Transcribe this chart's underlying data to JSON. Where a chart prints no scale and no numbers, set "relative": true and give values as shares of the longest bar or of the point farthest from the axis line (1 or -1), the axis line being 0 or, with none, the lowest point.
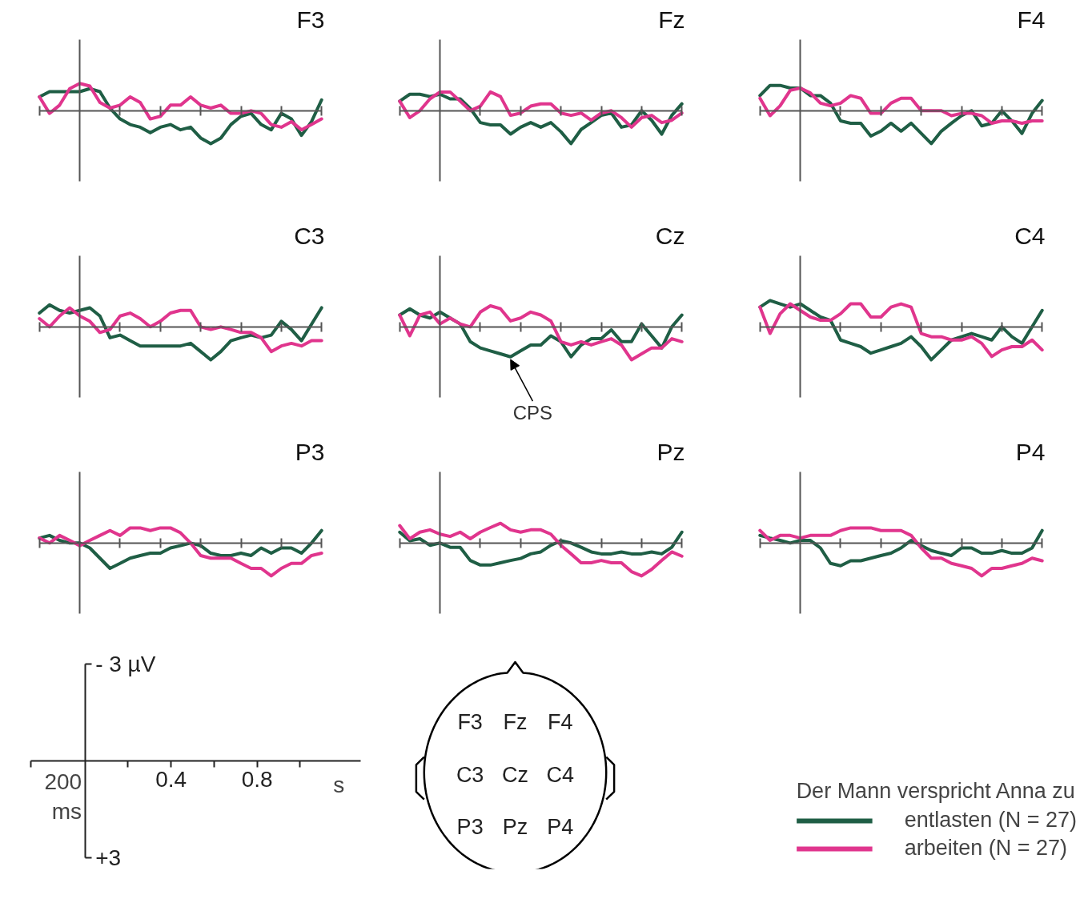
{
  "chart_data": [
    {
      "type": "line",
      "title": "F3",
      "relative": true,
      "legend": "bottom right",
      "legend_title": "Der Mann verspricht Anna zu",
      "categories": [
        null,
        null,
        null,
        null,
        null,
        null,
        null,
        null,
        null,
        null,
        null,
        null,
        null,
        null,
        null,
        null,
        null,
        null,
        null,
        null,
        null,
        null,
        null,
        null,
        null,
        null,
        null,
        null,
        null
      ],
      "series": [
        {
          "name": "entlasten (N = 27)",
          "color": "#1f5e45",
          "values": [
            0.42,
            0.58,
            0.58,
            0.58,
            0.58,
            0.67,
            0.58,
            0.08,
            -0.25,
            -0.42,
            -0.5,
            -0.67,
            -0.5,
            -0.42,
            -0.58,
            -0.5,
            -0.83,
            -1,
            -0.83,
            -0.42,
            -0.17,
            -0.08,
            -0.42,
            -0.58,
            -0.08,
            -0.25,
            -0.75,
            -0.33,
            0.33
          ]
        },
        {
          "name": "arbeiten (N = 27)",
          "color": "#e0358d",
          "values": [
            0.42,
            -0.08,
            0.17,
            0.67,
            0.83,
            0.75,
            0.25,
            0.08,
            0.17,
            0.42,
            0.25,
            -0.25,
            -0.17,
            0.17,
            0.17,
            0.42,
            0.17,
            0.08,
            0.17,
            -0.08,
            -0.08,
            0,
            -0.08,
            -0.42,
            -0.5,
            -0.33,
            -0.58,
            -0.42,
            -0.25
          ]
        }
      ]
    },
    {
      "type": "line",
      "title": "Fz",
      "relative": true,
      "categories": [
        null,
        null,
        null,
        null,
        null,
        null,
        null,
        null,
        null,
        null,
        null,
        null,
        null,
        null,
        null,
        null,
        null,
        null,
        null,
        null,
        null,
        null,
        null,
        null,
        null,
        null,
        null,
        null,
        null
      ],
      "series": [
        {
          "color": "#1f5e45",
          "values": [
            0.29,
            0.5,
            0.5,
            0.43,
            0.5,
            0.36,
            0.36,
            0.07,
            -0.36,
            -0.43,
            -0.43,
            -0.71,
            -0.5,
            -0.36,
            -0.5,
            -0.36,
            -0.64,
            -1,
            -0.57,
            -0.36,
            -0.14,
            -0.07,
            -0.5,
            -0.43,
            0,
            -0.29,
            -0.71,
            -0.14,
            0.21
          ]
        },
        {
          "color": "#e0358d",
          "values": [
            0.29,
            -0.21,
            0,
            0.36,
            0.57,
            0.57,
            0.29,
            0,
            0.14,
            0.57,
            0.43,
            -0.14,
            -0.07,
            0.14,
            0.21,
            0.21,
            -0.07,
            -0.14,
            -0.07,
            -0.29,
            -0.07,
            0,
            -0.21,
            -0.5,
            -0.21,
            -0.14,
            -0.36,
            -0.29,
            -0.07
          ]
        }
      ]
    },
    {
      "type": "line",
      "title": "F4",
      "relative": true,
      "categories": [
        null,
        null,
        null,
        null,
        null,
        null,
        null,
        null,
        null,
        null,
        null,
        null,
        null,
        null,
        null,
        null,
        null,
        null,
        null,
        null,
        null,
        null,
        null,
        null,
        null,
        null,
        null,
        null,
        null
      ],
      "series": [
        {
          "color": "#1f5e45",
          "values": [
            0.46,
            0.77,
            0.77,
            0.69,
            0.69,
            0.46,
            0.46,
            0.23,
            -0.31,
            -0.38,
            -0.38,
            -0.77,
            -0.62,
            -0.38,
            -0.62,
            -0.38,
            -0.69,
            -1,
            -0.62,
            -0.38,
            -0.15,
            0,
            -0.46,
            -0.38,
            0,
            -0.31,
            -0.69,
            -0.08,
            0.31
          ]
        },
        {
          "color": "#e0358d",
          "values": [
            0.38,
            -0.15,
            0.15,
            0.62,
            0.69,
            0.54,
            0.23,
            0.15,
            0.23,
            0.46,
            0.38,
            -0.08,
            -0.08,
            0.23,
            0.38,
            0.38,
            0,
            0,
            0,
            -0.15,
            -0.08,
            -0.08,
            -0.15,
            -0.38,
            -0.31,
            -0.31,
            -0.38,
            -0.31,
            -0.31
          ]
        }
      ]
    },
    {
      "type": "line",
      "title": "C3",
      "relative": true,
      "categories": [
        null,
        null,
        null,
        null,
        null,
        null,
        null,
        null,
        null,
        null,
        null,
        null,
        null,
        null,
        null,
        null,
        null,
        null,
        null,
        null,
        null,
        null,
        null,
        null,
        null,
        null,
        null,
        null,
        null
      ],
      "series": [
        {
          "color": "#1f5e45",
          "values": [
            0.42,
            0.67,
            0.5,
            0.42,
            0.5,
            0.58,
            0.33,
            -0.33,
            -0.25,
            -0.42,
            -0.58,
            -0.58,
            -0.58,
            -0.58,
            -0.58,
            -0.5,
            -0.75,
            -1,
            -0.75,
            -0.42,
            -0.33,
            -0.25,
            -0.33,
            -0.25,
            0.17,
            -0.08,
            -0.42,
            0.08,
            0.58
          ]
        },
        {
          "color": "#e0358d",
          "values": [
            0.25,
            0,
            0.33,
            0.58,
            0.33,
            0.17,
            -0.17,
            -0.08,
            0.33,
            0.42,
            0.25,
            0,
            0.17,
            0.42,
            0.5,
            0.5,
            0,
            -0.08,
            0,
            -0.08,
            -0.17,
            -0.17,
            -0.33,
            -0.75,
            -0.58,
            -0.5,
            -0.58,
            -0.42,
            -0.42
          ]
        }
      ]
    },
    {
      "type": "line",
      "title": "Cz",
      "relative": true,
      "annotations": [
        "CPS"
      ],
      "categories": [
        null,
        null,
        null,
        null,
        null,
        null,
        null,
        null,
        null,
        null,
        null,
        null,
        null,
        null,
        null,
        null,
        null,
        null,
        null,
        null,
        null,
        null,
        null,
        null,
        null,
        null,
        null,
        null,
        null
      ],
      "series": [
        {
          "color": "#1f5e45",
          "values": [
            0.36,
            0.55,
            0.36,
            0.27,
            0.45,
            0.27,
            0.09,
            -0.45,
            -0.64,
            -0.73,
            -0.82,
            -0.91,
            -0.73,
            -0.55,
            -0.55,
            -0.27,
            -0.45,
            -0.91,
            -0.55,
            -0.36,
            -0.36,
            -0.09,
            -0.45,
            -0.45,
            0.09,
            -0.27,
            -0.64,
            0,
            0.36
          ]
        },
        {
          "color": "#e0358d",
          "values": [
            0.36,
            -0.27,
            0.36,
            0.45,
            0.09,
            0.27,
            0.09,
            0,
            0.45,
            0.64,
            0.55,
            0.18,
            0.27,
            0.45,
            0.36,
            0.18,
            -0.45,
            -0.55,
            -0.45,
            -0.55,
            -0.45,
            -0.36,
            -0.55,
            -1,
            -0.82,
            -0.64,
            -0.64,
            -0.36,
            -0.45
          ]
        }
      ]
    },
    {
      "type": "line",
      "title": "C4",
      "relative": true,
      "categories": [
        null,
        null,
        null,
        null,
        null,
        null,
        null,
        null,
        null,
        null,
        null,
        null,
        null,
        null,
        null,
        null,
        null,
        null,
        null,
        null,
        null,
        null,
        null,
        null,
        null,
        null,
        null,
        null,
        null
      ],
      "series": [
        {
          "color": "#1f5e45",
          "values": [
            0.6,
            0.8,
            0.7,
            0.6,
            0.7,
            0.5,
            0.3,
            0.2,
            -0.4,
            -0.5,
            -0.6,
            -0.8,
            -0.7,
            -0.6,
            -0.5,
            -0.3,
            -0.6,
            -1,
            -0.7,
            -0.4,
            -0.3,
            -0.2,
            -0.3,
            -0.4,
            0,
            -0.3,
            -0.5,
            0,
            0.5
          ]
        },
        {
          "color": "#e0358d",
          "values": [
            0.6,
            -0.2,
            0.4,
            0.7,
            0.5,
            0.3,
            0.2,
            0.2,
            0.4,
            0.7,
            0.7,
            0.3,
            0.3,
            0.6,
            0.7,
            0.6,
            -0.2,
            -0.3,
            -0.3,
            -0.4,
            -0.4,
            -0.3,
            -0.5,
            -0.9,
            -0.7,
            -0.6,
            -0.6,
            -0.4,
            -0.7
          ]
        }
      ]
    },
    {
      "type": "line",
      "title": "P3",
      "relative": true,
      "categories": [
        null,
        null,
        null,
        null,
        null,
        null,
        null,
        null,
        null,
        null,
        null,
        null,
        null,
        null,
        null,
        null,
        null,
        null,
        null,
        null,
        null,
        null,
        null,
        null,
        null,
        null,
        null,
        null,
        null
      ],
      "series": [
        {
          "color": "#1f5e45",
          "values": [
            0.15,
            0.23,
            0.08,
            0,
            0,
            -0.15,
            -0.46,
            -0.77,
            -0.62,
            -0.46,
            -0.38,
            -0.31,
            -0.31,
            -0.15,
            -0.08,
            0,
            -0.08,
            -0.31,
            -0.38,
            -0.38,
            -0.31,
            -0.38,
            -0.15,
            -0.31,
            -0.15,
            -0.15,
            -0.31,
            0,
            0.38
          ]
        },
        {
          "color": "#e0358d",
          "values": [
            0.15,
            0,
            0.23,
            0.08,
            -0.08,
            0.08,
            0.23,
            0.38,
            0.23,
            0.46,
            0.46,
            0.38,
            0.46,
            0.46,
            0.31,
            0,
            -0.38,
            -0.46,
            -0.46,
            -0.46,
            -0.62,
            -0.77,
            -0.77,
            -1,
            -0.77,
            -0.62,
            -0.62,
            -0.38,
            -0.31
          ]
        }
      ]
    },
    {
      "type": "line",
      "title": "Pz",
      "relative": true,
      "categories": [
        null,
        null,
        null,
        null,
        null,
        null,
        null,
        null,
        null,
        null,
        null,
        null,
        null,
        null,
        null,
        null,
        null,
        null,
        null,
        null,
        null,
        null,
        null,
        null,
        null,
        null,
        null,
        null,
        null
      ],
      "series": [
        {
          "color": "#1f5e45",
          "values": [
            0.33,
            0.07,
            0.13,
            -0.07,
            0,
            -0.13,
            -0.13,
            -0.53,
            -0.67,
            -0.67,
            -0.6,
            -0.53,
            -0.47,
            -0.33,
            -0.27,
            -0.07,
            0.07,
            0,
            -0.13,
            -0.27,
            -0.33,
            -0.33,
            -0.27,
            -0.33,
            -0.33,
            -0.27,
            -0.33,
            -0.13,
            0.33
          ]
        },
        {
          "color": "#e0358d",
          "values": [
            0.53,
            0.13,
            0.33,
            0.4,
            0.27,
            0.2,
            0.33,
            0.13,
            0.33,
            0.47,
            0.6,
            0.4,
            0.33,
            0.4,
            0.4,
            0.27,
            -0.07,
            -0.33,
            -0.6,
            -0.6,
            -0.53,
            -0.6,
            -0.6,
            -0.87,
            -1,
            -0.8,
            -0.53,
            -0.27,
            -0.4
          ]
        }
      ]
    },
    {
      "type": "line",
      "title": "P4",
      "relative": true,
      "categories": [
        null,
        null,
        null,
        null,
        null,
        null,
        null,
        null,
        null,
        null,
        null,
        null,
        null,
        null,
        null,
        null,
        null,
        null,
        null,
        null,
        null,
        null,
        null,
        null,
        null,
        null,
        null,
        null,
        null
      ],
      "series": [
        {
          "color": "#1f5e45",
          "values": [
            0.23,
            0.15,
            0.08,
            0,
            0.08,
            0.08,
            -0.15,
            -0.62,
            -0.69,
            -0.54,
            -0.54,
            -0.46,
            -0.38,
            -0.31,
            -0.15,
            0.08,
            -0.08,
            -0.23,
            -0.31,
            -0.38,
            -0.15,
            -0.15,
            -0.31,
            -0.31,
            -0.23,
            -0.31,
            -0.31,
            -0.15,
            0.38
          ]
        },
        {
          "color": "#e0358d",
          "values": [
            0.38,
            0.08,
            0.23,
            0.23,
            0.15,
            0.23,
            0.23,
            0.23,
            0.38,
            0.46,
            0.46,
            0.46,
            0.38,
            0.38,
            0.38,
            0.23,
            -0.15,
            -0.46,
            -0.46,
            -0.62,
            -0.69,
            -0.77,
            -1,
            -0.77,
            -0.77,
            -0.69,
            -0.62,
            -0.46,
            -0.54
          ]
        }
      ]
    },
    {
      "type": "line",
      "xlabel": "s",
      "annotations": [
        "200 ms"
      ],
      "xlim": [
        -0.25,
        1.28
      ],
      "ylim": [
        3,
        -3
      ],
      "xticks": [
        {
          "value": -0.25,
          "label": null
        },
        {
          "value": 0.2,
          "label": null
        },
        {
          "value": 0.4,
          "label": "0.4"
        },
        {
          "value": 0.6,
          "label": null
        },
        {
          "value": 0.8,
          "label": "0.8"
        },
        {
          "value": 1.0,
          "label": null
        }
      ],
      "yticks": [
        {
          "value": -3,
          "label": "- 3 µV"
        },
        {
          "value": 3,
          "label": "+3"
        }
      ]
    },
    {
      "type": "other",
      "annotations": [
        "F3",
        "Fz",
        "F4",
        "C3",
        "Cz",
        "C4",
        "P3",
        "Pz",
        "P4"
      ]
    }
  ]
}
